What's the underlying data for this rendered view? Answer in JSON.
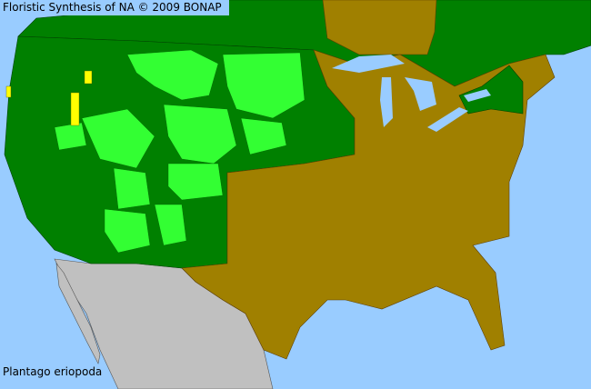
{
  "title": "Floristic Synthesis of NA © 2009 BONAP",
  "species": "Plantago eriopoda",
  "colors": {
    "water": "#99ccff",
    "present_native": "#008000",
    "present_rare_or_noxious": "#33ff33",
    "absent": "#a08000",
    "outside_range": "#c0c0c0",
    "extinct_or_historic": "#ffff00"
  }
}
